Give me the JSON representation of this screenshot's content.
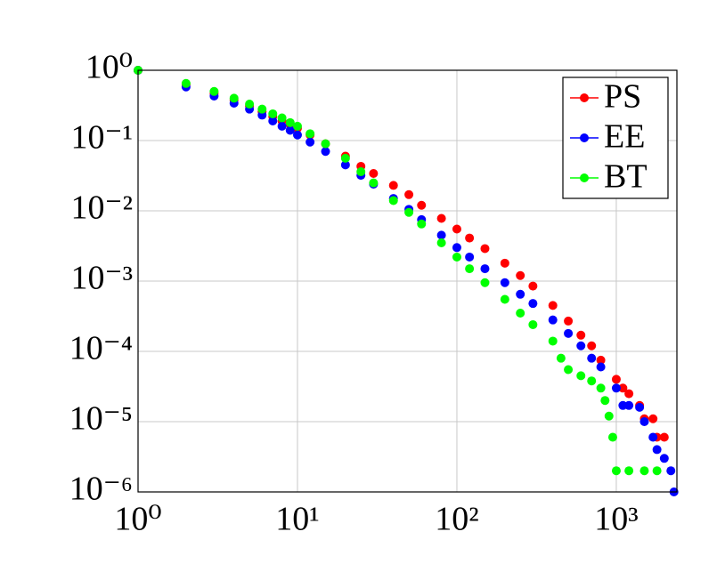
{
  "chart_data": {
    "type": "scatter",
    "xscale": "log",
    "yscale": "log",
    "grid": true,
    "legend": "top-right",
    "xlim": [
      1,
      2400
    ],
    "ylim": [
      1e-06,
      1
    ],
    "xticks": [
      {
        "value": 1,
        "label": "10⁰"
      },
      {
        "value": 10,
        "label": "10¹"
      },
      {
        "value": 100,
        "label": "10²"
      },
      {
        "value": 1000,
        "label": "10³"
      }
    ],
    "yticks": [
      {
        "value": 1e-06,
        "label": "10⁻⁶"
      },
      {
        "value": 1e-05,
        "label": "10⁻⁵"
      },
      {
        "value": 0.0001,
        "label": "10⁻⁴"
      },
      {
        "value": 0.001,
        "label": "10⁻³"
      },
      {
        "value": 0.01,
        "label": "10⁻²"
      },
      {
        "value": 0.1,
        "label": "10⁻¹"
      },
      {
        "value": 1,
        "label": "10⁰"
      }
    ],
    "series": [
      {
        "name": "PS",
        "color": "#ff0000",
        "x": [
          1,
          2,
          3,
          4,
          5,
          6,
          7,
          8,
          9,
          10,
          12,
          15,
          20,
          25,
          30,
          40,
          50,
          60,
          80,
          100,
          120,
          150,
          200,
          250,
          300,
          400,
          500,
          600,
          700,
          800,
          1000,
          1100,
          1200,
          1400,
          1500,
          1700,
          1800,
          2000
        ],
        "values": [
          1,
          0.62,
          0.47,
          0.38,
          0.31,
          0.26,
          0.22,
          0.19,
          0.17,
          0.15,
          0.12,
          0.09,
          0.06,
          0.043,
          0.034,
          0.023,
          0.017,
          0.012,
          0.0078,
          0.0055,
          0.0041,
          0.0029,
          0.0018,
          0.0012,
          0.00085,
          0.00045,
          0.00027,
          0.00017,
          0.00012,
          7.5e-05,
          4e-05,
          3e-05,
          2.5e-05,
          1.7e-05,
          1.1e-05,
          1.1e-05,
          6e-06,
          6e-06
        ]
      },
      {
        "name": "EE",
        "color": "#0000ff",
        "x": [
          1,
          2,
          3,
          4,
          5,
          6,
          7,
          8,
          9,
          10,
          12,
          15,
          20,
          25,
          30,
          40,
          50,
          60,
          80,
          100,
          120,
          150,
          200,
          250,
          300,
          400,
          500,
          600,
          700,
          800,
          1000,
          1100,
          1200,
          1400,
          1500,
          1700,
          1800,
          2000,
          2200,
          2300
        ],
        "values": [
          1,
          0.58,
          0.43,
          0.34,
          0.28,
          0.23,
          0.19,
          0.16,
          0.14,
          0.12,
          0.095,
          0.07,
          0.045,
          0.032,
          0.024,
          0.015,
          0.0105,
          0.0075,
          0.0045,
          0.003,
          0.0022,
          0.0015,
          0.00095,
          0.00065,
          0.00048,
          0.00028,
          0.00018,
          0.00012,
          8e-05,
          6e-05,
          3e-05,
          1.7e-05,
          1.7e-05,
          1.6e-05,
          1e-05,
          6e-06,
          4e-06,
          3e-06,
          2e-06,
          1e-06
        ]
      },
      {
        "name": "BT",
        "color": "#00ff00",
        "x": [
          1,
          2,
          3,
          4,
          5,
          6,
          7,
          8,
          9,
          10,
          12,
          15,
          20,
          25,
          30,
          40,
          50,
          60,
          80,
          100,
          120,
          150,
          200,
          250,
          300,
          400,
          450,
          500,
          600,
          700,
          800,
          850,
          900,
          950,
          1000,
          1200,
          1500,
          1800
        ],
        "values": [
          1,
          0.65,
          0.5,
          0.4,
          0.33,
          0.28,
          0.24,
          0.21,
          0.18,
          0.16,
          0.125,
          0.09,
          0.056,
          0.036,
          0.025,
          0.014,
          0.0095,
          0.0065,
          0.0035,
          0.0022,
          0.0015,
          0.00095,
          0.00055,
          0.00035,
          0.00024,
          0.00014,
          8e-05,
          5.5e-05,
          4.5e-05,
          3.8e-05,
          3e-05,
          2e-05,
          1.2e-05,
          6e-06,
          2e-06,
          2e-06,
          2e-06,
          2e-06
        ]
      }
    ]
  }
}
